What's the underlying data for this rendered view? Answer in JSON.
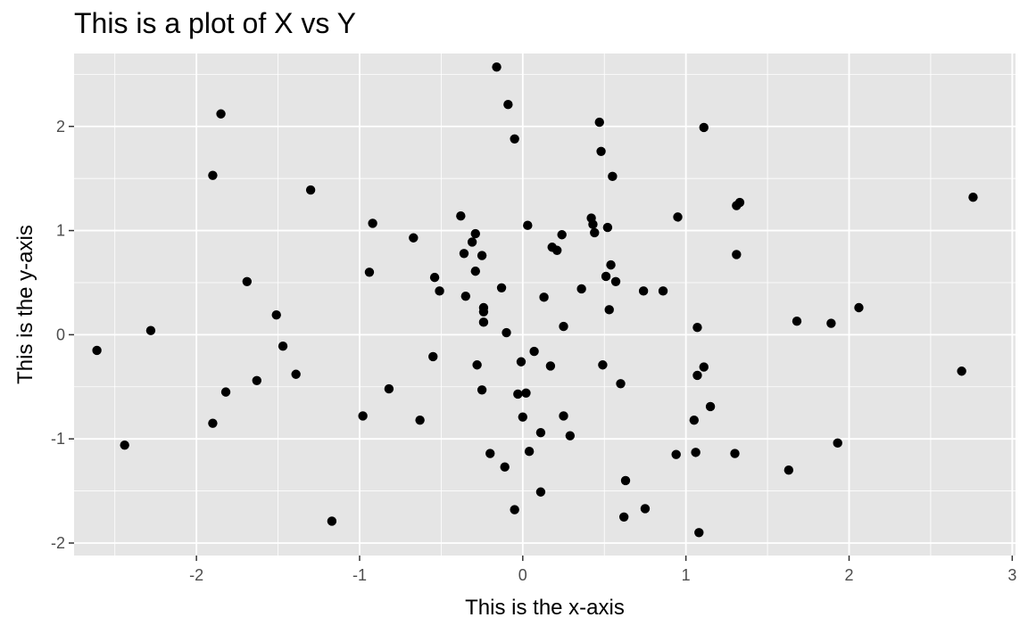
{
  "chart_data": {
    "type": "scatter",
    "title": "This is a plot of X vs Y",
    "xlabel": "This is the x-axis",
    "ylabel": "This is the y-axis",
    "xlim": [
      -2.75,
      3.02
    ],
    "ylim": [
      -2.12,
      2.7
    ],
    "xticks": [
      -2,
      -1,
      0,
      1,
      2,
      3
    ],
    "yticks": [
      -2,
      -1,
      0,
      1,
      2
    ],
    "xtick_labels": [
      "-2",
      "-1",
      "0",
      "1",
      "2",
      "3"
    ],
    "ytick_labels": [
      "-2",
      "-1",
      "0",
      "1",
      "2"
    ],
    "grid": true,
    "colors": {
      "panel": "#e5e5e5",
      "grid": "#ffffff",
      "point": "#000000",
      "tick": "#333333"
    },
    "points": [
      [
        -0.16,
        2.57
      ],
      [
        -0.09,
        2.21
      ],
      [
        -0.05,
        1.88
      ],
      [
        0.47,
        2.04
      ],
      [
        0.48,
        1.76
      ],
      [
        1.11,
        1.99
      ],
      [
        0.55,
        1.52
      ],
      [
        0.42,
        1.12
      ],
      [
        0.43,
        1.06
      ],
      [
        0.44,
        0.98
      ],
      [
        0.52,
        1.03
      ],
      [
        0.95,
        1.13
      ],
      [
        1.31,
        1.24
      ],
      [
        1.33,
        1.27
      ],
      [
        2.76,
        1.32
      ],
      [
        1.31,
        0.77
      ],
      [
        0.54,
        0.67
      ],
      [
        0.51,
        0.56
      ],
      [
        0.57,
        0.51
      ],
      [
        0.74,
        0.42
      ],
      [
        0.86,
        0.42
      ],
      [
        0.36,
        0.44
      ],
      [
        0.53,
        0.24
      ],
      [
        0.24,
        0.96
      ],
      [
        0.18,
        0.84
      ],
      [
        0.21,
        0.81
      ],
      [
        0.03,
        1.05
      ],
      [
        0.13,
        0.36
      ],
      [
        0.25,
        0.08
      ],
      [
        -0.38,
        1.14
      ],
      [
        -0.29,
        0.97
      ],
      [
        -0.31,
        0.89
      ],
      [
        -0.36,
        0.78
      ],
      [
        -0.25,
        0.76
      ],
      [
        -0.29,
        0.61
      ],
      [
        -0.13,
        0.45
      ],
      [
        -0.35,
        0.37
      ],
      [
        -0.24,
        0.26
      ],
      [
        -0.24,
        0.22
      ],
      [
        -0.24,
        0.12
      ],
      [
        -0.1,
        0.02
      ],
      [
        -0.67,
        0.93
      ],
      [
        -0.54,
        0.55
      ],
      [
        -0.51,
        0.42
      ],
      [
        -0.92,
        1.07
      ],
      [
        -0.94,
        0.6
      ],
      [
        -1.3,
        1.39
      ],
      [
        -1.85,
        2.12
      ],
      [
        -1.9,
        1.53
      ],
      [
        -1.69,
        0.51
      ],
      [
        -1.51,
        0.19
      ],
      [
        -1.47,
        -0.11
      ],
      [
        -1.39,
        -0.38
      ],
      [
        -1.63,
        -0.44
      ],
      [
        -1.82,
        -0.55
      ],
      [
        -1.9,
        -0.85
      ],
      [
        -2.28,
        0.04
      ],
      [
        -2.61,
        -0.15
      ],
      [
        -2.44,
        -1.06
      ],
      [
        -1.17,
        -1.79
      ],
      [
        -0.98,
        -0.78
      ],
      [
        -0.82,
        -0.52
      ],
      [
        -0.63,
        -0.82
      ],
      [
        -0.55,
        -0.21
      ],
      [
        -0.28,
        -0.29
      ],
      [
        -0.25,
        -0.53
      ],
      [
        -0.01,
        -0.26
      ],
      [
        0.07,
        -0.16
      ],
      [
        0.17,
        -0.3
      ],
      [
        0.49,
        -0.29
      ],
      [
        0.6,
        -0.47
      ],
      [
        0.02,
        -0.56
      ],
      [
        -0.03,
        -0.57
      ],
      [
        0.0,
        -0.79
      ],
      [
        0.25,
        -0.78
      ],
      [
        0.29,
        -0.97
      ],
      [
        0.11,
        -0.94
      ],
      [
        0.04,
        -1.12
      ],
      [
        -0.2,
        -1.14
      ],
      [
        -0.11,
        -1.27
      ],
      [
        -0.05,
        -1.68
      ],
      [
        0.11,
        -1.51
      ],
      [
        0.63,
        -1.4
      ],
      [
        0.62,
        -1.75
      ],
      [
        0.75,
        -1.67
      ],
      [
        0.94,
        -1.15
      ],
      [
        1.05,
        -0.82
      ],
      [
        1.07,
        -0.39
      ],
      [
        1.11,
        -0.31
      ],
      [
        1.15,
        -0.69
      ],
      [
        1.07,
        0.07
      ],
      [
        1.06,
        -1.13
      ],
      [
        1.08,
        -1.9
      ],
      [
        1.3,
        -1.14
      ],
      [
        1.63,
        -1.3
      ],
      [
        1.68,
        0.13
      ],
      [
        1.89,
        0.11
      ],
      [
        1.93,
        -1.04
      ],
      [
        2.06,
        0.26
      ],
      [
        2.69,
        -0.35
      ]
    ]
  }
}
